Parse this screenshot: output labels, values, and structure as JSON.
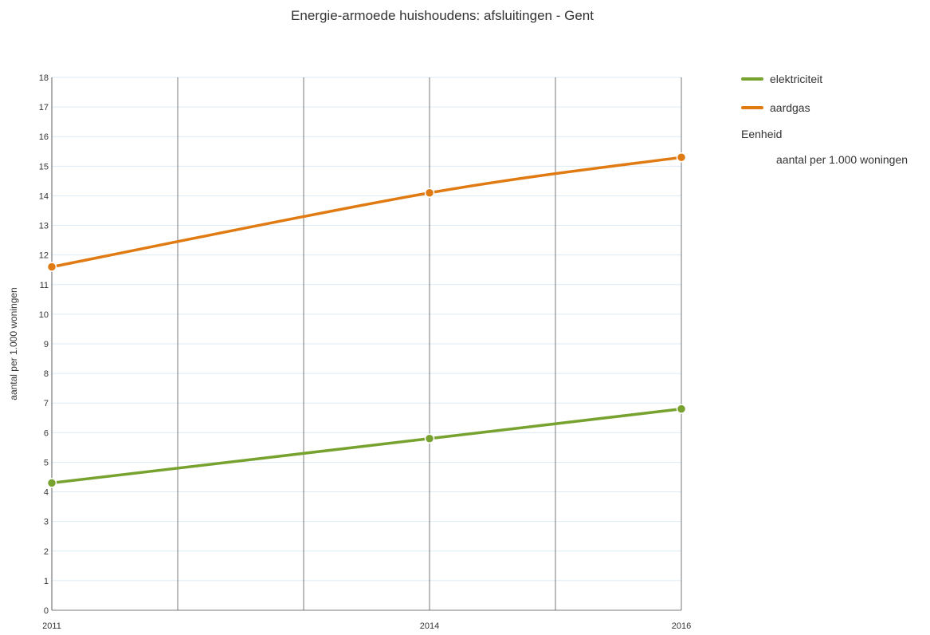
{
  "chart_data": {
    "type": "line",
    "title": "Energie-armoede huishoudens: afsluitingen - Gent",
    "ylabel": "aantal per 1.000 woningen",
    "xlabel": "",
    "x": [
      2011,
      2014,
      2016
    ],
    "xlim": [
      2011,
      2016
    ],
    "ylim": [
      0,
      18
    ],
    "yticks": [
      "0",
      "1",
      "2",
      "3",
      "4",
      "5",
      "6",
      "7",
      "8",
      "9",
      "10",
      "11",
      "12",
      "13",
      "14",
      "15",
      "16",
      "17",
      "18"
    ],
    "xtick_labels": [
      "2011",
      "2014",
      "2016"
    ],
    "grid": true,
    "legend_position": "right",
    "series": [
      {
        "name": "elektriciteit",
        "color": "#78a22f",
        "values": [
          4.3,
          5.8,
          6.8
        ]
      },
      {
        "name": "aardgas",
        "color": "#e07b13",
        "values": [
          11.6,
          14.1,
          15.3
        ]
      }
    ]
  },
  "legend": {
    "unit_title": "Eenheid",
    "unit_value": "aantal per 1.000 woningen"
  }
}
